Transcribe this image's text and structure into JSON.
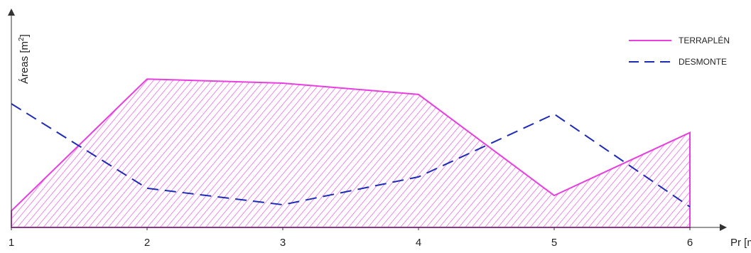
{
  "chart_data": {
    "type": "area",
    "xlabel": "Pr [m]",
    "ylabel": "Áreas [m",
    "ylabel_superscript": "2",
    "ylabel_suffix": "]",
    "x": [
      1,
      2,
      3,
      4,
      5,
      6
    ],
    "xticks": [
      "1",
      "2",
      "3",
      "4",
      "5",
      "6"
    ],
    "xlim": [
      1,
      6
    ],
    "ylim": [
      0,
      10
    ],
    "grid": false,
    "legend_position": "top-right",
    "series": [
      {
        "name": "TERRAPLÉN",
        "style": "solid",
        "filled": true,
        "fill_pattern": "diagonal-hatch",
        "color": "#e83ee0",
        "values": [
          0.8,
          7.2,
          7.0,
          6.45,
          1.55,
          4.6
        ]
      },
      {
        "name": "DESMONTE",
        "style": "dashed",
        "filled": false,
        "color": "#1c2ab8",
        "values": [
          6.0,
          1.9,
          1.1,
          2.45,
          5.5,
          1.0
        ]
      }
    ]
  }
}
